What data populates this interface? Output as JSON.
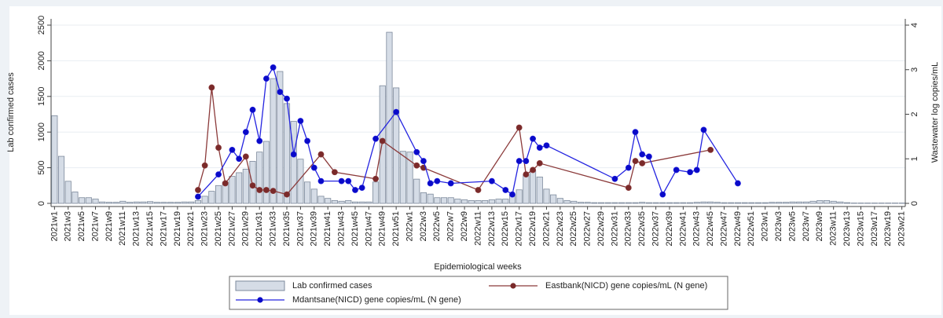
{
  "chart_data": {
    "type": "bar",
    "x_label": "Epidemiological weeks",
    "y_label": "Lab confirmed cases",
    "y2_label": "Wastewater log copies/mL",
    "categories": [
      "2021w1",
      null,
      "2021w3",
      null,
      "2021w5",
      null,
      "2021w7",
      null,
      "2021w9",
      null,
      "2021w11",
      null,
      "2021w13",
      null,
      "2021w15",
      null,
      "2021w17",
      null,
      "2021w19",
      null,
      "2021w21",
      null,
      "2021w23",
      null,
      "2021w25",
      null,
      "2021w27",
      null,
      "2021w29",
      null,
      "2021w31",
      null,
      "2021w33",
      null,
      "2021w35",
      null,
      "2021w37",
      null,
      "2021w39",
      null,
      "2021w41",
      null,
      "2021w43",
      null,
      "2021w45",
      null,
      "2021w47",
      null,
      "2021w49",
      null,
      "2021w51",
      null,
      "2022w1",
      null,
      "2022w3",
      null,
      "2022w5",
      null,
      "2022w7",
      null,
      "2022w9",
      null,
      "2022w11",
      null,
      "2022w13",
      null,
      "2022w15",
      null,
      "2022w17",
      null,
      "2022w19",
      null,
      "2022w21",
      null,
      "2022w23",
      null,
      "2022w25",
      null,
      "2022w27",
      null,
      "2022w29",
      null,
      "2022w31",
      null,
      "2022w33",
      null,
      "2022w35",
      null,
      "2022w37",
      null,
      "2022w39",
      null,
      "2022w41",
      null,
      "2022w43",
      null,
      "2022w45",
      null,
      "2022w47",
      null,
      "2022w49",
      null,
      "2022w51",
      null,
      "2023w1",
      null,
      "2023w3",
      null,
      "2023w5",
      null,
      "2023w7",
      null,
      "2023w9",
      null,
      "2023w11",
      null,
      "2023w13",
      null,
      "2023w15",
      null,
      "2023w17",
      null,
      "2023w19",
      null,
      "2023w21"
    ],
    "series": [
      {
        "name": "Lab confirmed cases",
        "type": "bar",
        "color": "#d5dce6",
        "edge_color": "#7d8a9c",
        "values": [
          1230,
          660,
          310,
          160,
          80,
          80,
          60,
          20,
          15,
          15,
          30,
          15,
          20,
          20,
          25,
          15,
          15,
          15,
          15,
          20,
          20,
          40,
          100,
          170,
          250,
          300,
          380,
          430,
          480,
          590,
          720,
          870,
          1750,
          1850,
          1400,
          1150,
          620,
          300,
          200,
          100,
          70,
          40,
          30,
          40,
          20,
          20,
          20,
          300,
          1650,
          2400,
          1620,
          730,
          720,
          340,
          150,
          130,
          80,
          80,
          80,
          60,
          50,
          40,
          40,
          40,
          50,
          60,
          60,
          120,
          190,
          400,
          460,
          370,
          200,
          120,
          70,
          40,
          30,
          15,
          15,
          10,
          10,
          10,
          10,
          10,
          10,
          10,
          15,
          10,
          10,
          10,
          10,
          10,
          10,
          10,
          15,
          20,
          20,
          15,
          10,
          10,
          10,
          10,
          10,
          10,
          10,
          15,
          15,
          15,
          20,
          20,
          20,
          30,
          40,
          40,
          30,
          20,
          10,
          5,
          5,
          5,
          5,
          5,
          5,
          5,
          5
        ]
      },
      {
        "name": "Eastbank(NICD) gene copies/mL (N gene)",
        "type": "line",
        "axis": "y2",
        "color": "#8b3a3a",
        "marker_color": "#7a2a2a",
        "values": [
          null,
          null,
          null,
          null,
          null,
          null,
          null,
          null,
          null,
          null,
          null,
          null,
          null,
          null,
          null,
          null,
          null,
          null,
          null,
          null,
          null,
          0.3,
          0.85,
          2.6,
          1.25,
          0.45,
          null,
          null,
          1.05,
          0.4,
          0.3,
          0.3,
          0.28,
          null,
          0.2,
          null,
          null,
          null,
          null,
          1.1,
          null,
          0.7,
          null,
          null,
          null,
          null,
          null,
          0.55,
          1.4,
          null,
          null,
          null,
          null,
          0.85,
          0.8,
          null,
          null,
          null,
          null,
          null,
          null,
          null,
          0.3,
          null,
          null,
          null,
          null,
          null,
          1.7,
          0.65,
          0.75,
          0.9,
          null,
          null,
          null,
          null,
          null,
          null,
          null,
          null,
          null,
          null,
          null,
          null,
          0.35,
          0.95,
          0.9,
          null,
          null,
          null,
          null,
          null,
          null,
          null,
          null,
          null,
          1.2,
          null,
          null,
          null,
          null,
          null,
          null,
          null,
          null,
          null,
          null,
          null,
          null,
          null,
          null,
          null,
          null,
          null,
          null,
          null,
          null,
          null,
          null,
          null,
          null,
          null,
          null,
          null,
          null
        ]
      },
      {
        "name": "Mdantsane(NICD) gene copies/mL (N gene)",
        "type": "line",
        "axis": "y2",
        "color": "#2424e0",
        "marker_color": "#0a0ac8",
        "values": [
          null,
          null,
          null,
          null,
          null,
          null,
          null,
          null,
          null,
          null,
          null,
          null,
          null,
          null,
          null,
          null,
          null,
          null,
          null,
          null,
          null,
          0.15,
          null,
          null,
          0.65,
          null,
          1.2,
          1.0,
          1.6,
          2.1,
          1.4,
          2.8,
          3.05,
          2.5,
          2.35,
          1.1,
          1.85,
          1.4,
          0.8,
          0.5,
          null,
          null,
          0.5,
          0.5,
          0.3,
          0.35,
          null,
          1.45,
          null,
          null,
          2.05,
          null,
          null,
          1.15,
          0.95,
          0.45,
          0.5,
          null,
          0.45,
          null,
          null,
          null,
          null,
          null,
          0.5,
          null,
          0.3,
          0.2,
          0.95,
          0.95,
          1.45,
          1.25,
          1.3,
          null,
          null,
          null,
          null,
          null,
          null,
          null,
          null,
          null,
          0.55,
          null,
          0.8,
          1.6,
          1.1,
          1.05,
          null,
          0.2,
          null,
          0.75,
          null,
          0.7,
          0.75,
          1.65,
          null,
          null,
          null,
          null,
          0.45,
          null,
          null,
          null,
          null,
          null,
          null,
          null,
          null,
          null,
          null,
          null,
          null,
          null,
          null,
          null,
          null,
          null,
          null,
          null,
          null,
          null,
          null,
          null,
          null
        ]
      }
    ],
    "connect_gaps": true,
    "ylim": [
      0,
      2500
    ],
    "yticks": [
      0,
      500,
      1000,
      1500,
      2000,
      2500
    ],
    "y2lim": [
      0,
      4
    ],
    "y2ticks": [
      0,
      1,
      2,
      3,
      4
    ],
    "grid": true
  }
}
